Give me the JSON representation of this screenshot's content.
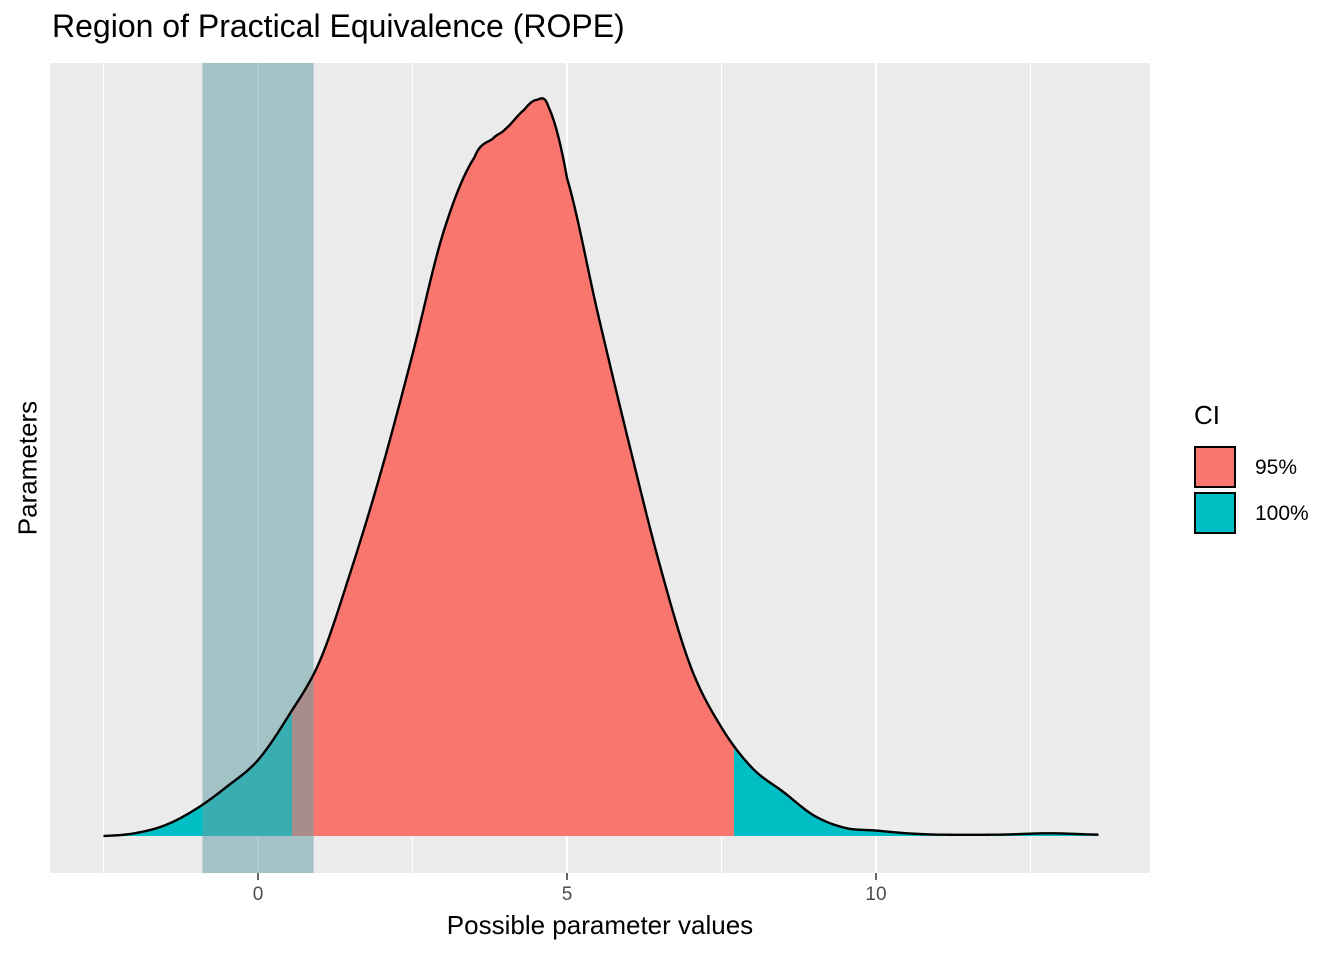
{
  "chart_data": {
    "type": "area",
    "title": "Region of Practical Equivalence (ROPE)",
    "xlabel": "Possible parameter values",
    "ylabel": "Parameters",
    "xlim": [
      -2.5,
      13.6
    ],
    "x_ticks": [
      0,
      5,
      10
    ],
    "x_tick_labels": [
      "0",
      "5",
      "10"
    ],
    "y_ticks_visible": false,
    "grid": true,
    "legend": {
      "title": "CI",
      "placement": "right",
      "items": [
        {
          "label": "95%",
          "color": "#F8766D"
        },
        {
          "label": "100%",
          "color": "#00BFC4"
        }
      ]
    },
    "rope": {
      "low": -0.9,
      "high": 0.9,
      "color": "#66A1A6"
    },
    "ci_95": {
      "low": 0.55,
      "high": 7.7
    },
    "density": {
      "x": [
        -2.5,
        -2.0,
        -1.5,
        -1.0,
        -0.5,
        0.0,
        0.5,
        1.0,
        1.5,
        2.0,
        2.5,
        3.0,
        3.5,
        3.8,
        4.0,
        4.3,
        4.5,
        4.7,
        5.0,
        5.5,
        6.0,
        6.5,
        7.0,
        7.5,
        8.0,
        8.5,
        9.0,
        9.5,
        10.0,
        10.5,
        11.0,
        12.0,
        12.8,
        13.6
      ],
      "y": [
        0.0,
        0.004,
        0.016,
        0.04,
        0.073,
        0.112,
        0.178,
        0.258,
        0.39,
        0.54,
        0.71,
        0.89,
        1.0,
        1.028,
        1.042,
        1.07,
        1.085,
        1.075,
        0.97,
        0.77,
        0.58,
        0.4,
        0.25,
        0.16,
        0.1,
        0.065,
        0.03,
        0.012,
        0.008,
        0.004,
        0.002,
        0.002,
        0.004,
        0.002
      ]
    },
    "colors": {
      "ci_95": "#F8766D",
      "ci_100": "#00BFC4",
      "panel": "#EBEBEB",
      "grid": "#FFFFFF",
      "rope": "#66A1A6"
    }
  }
}
